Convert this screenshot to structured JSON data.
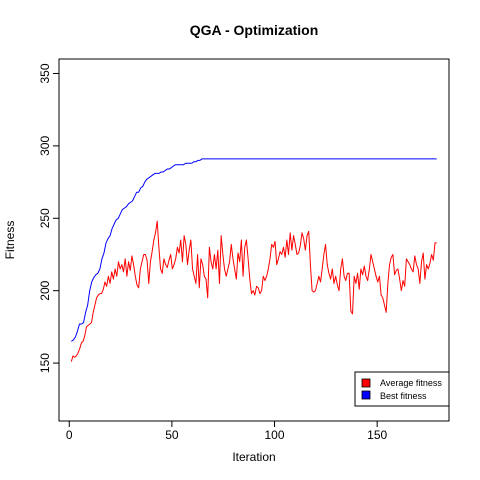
{
  "chart_data": {
    "type": "line",
    "title": "QGA - Optimization",
    "xlabel": "Iteration",
    "ylabel": "Fitness",
    "xlim": [
      -5,
      185
    ],
    "ylim": [
      110,
      360
    ],
    "x_ticks": [
      0,
      50,
      100,
      150
    ],
    "y_ticks": [
      150,
      200,
      250,
      300,
      350
    ],
    "grid": false,
    "legend_position": "bottom-right",
    "series": [
      {
        "name": "Average fitness",
        "color": "#ff0000",
        "values": [
          151,
          155,
          154,
          155,
          157,
          160,
          164,
          165,
          169,
          175,
          176,
          177,
          178,
          185,
          190,
          195,
          197,
          198,
          198,
          201,
          206,
          203,
          210,
          205,
          213,
          208,
          215,
          210,
          220,
          215,
          218,
          213,
          222,
          210,
          220,
          214,
          224,
          218,
          210,
          204,
          202,
          215,
          220,
          225,
          225,
          221,
          205,
          220,
          227,
          235,
          240,
          248,
          230,
          215,
          212,
          222,
          218,
          216,
          221,
          225,
          215,
          218,
          222,
          230,
          226,
          235,
          220,
          238,
          232,
          218,
          228,
          235,
          215,
          210,
          205,
          225,
          202,
          222,
          218,
          210,
          208,
          195,
          230,
          220,
          215,
          225,
          215,
          228,
          205,
          238,
          225,
          215,
          210,
          215,
          220,
          232,
          222,
          215,
          208,
          226,
          220,
          235,
          210,
          230,
          235,
          222,
          208,
          198,
          200,
          197,
          203,
          202,
          198,
          200,
          210,
          207,
          210,
          215,
          222,
          232,
          230,
          234,
          218,
          222,
          227,
          225,
          230,
          223,
          235,
          225,
          240,
          228,
          238,
          232,
          225,
          226,
          231,
          240,
          236,
          228,
          238,
          241,
          218,
          200,
          199,
          200,
          205,
          210,
          206,
          215,
          225,
          232,
          218,
          212,
          208,
          215,
          205,
          210,
          204,
          200,
          215,
          222,
          210,
          207,
          212,
          212,
          186,
          184,
          210,
          205,
          212,
          201,
          215,
          211,
          217,
          210,
          207,
          215,
          225,
          220,
          215,
          210,
          206,
          210,
          197,
          195,
          190,
          185,
          205,
          218,
          223,
          225,
          211,
          214,
          215,
          208,
          200,
          207,
          203,
          222,
          220,
          218,
          215,
          213,
          224,
          218,
          215,
          205,
          220,
          226,
          208,
          218,
          215,
          219,
          225,
          221,
          233,
          233
        ]
      },
      {
        "name": "Best fitness",
        "color": "#0000ff",
        "values": [
          165,
          166,
          168,
          172,
          177,
          177,
          178,
          185,
          190,
          200,
          206,
          209,
          211,
          212,
          215,
          222,
          226,
          233,
          236,
          238,
          243,
          246,
          249,
          250,
          253,
          256,
          257,
          258,
          260,
          261,
          262,
          265,
          268,
          268,
          271,
          272,
          275,
          277,
          278,
          279,
          280,
          281,
          281,
          281,
          282,
          282,
          283,
          284,
          284,
          285,
          286,
          287,
          287,
          287,
          287,
          287,
          288,
          288,
          288,
          288,
          289,
          289,
          290,
          290,
          291,
          291,
          291,
          291,
          291,
          291,
          291,
          291,
          291,
          291,
          291,
          291,
          291,
          291,
          291,
          291,
          291,
          291,
          291,
          291,
          291,
          291,
          291,
          291,
          291,
          291,
          291,
          291,
          291,
          291,
          291,
          291,
          291,
          291,
          291,
          291,
          291,
          291,
          291,
          291,
          291,
          291,
          291,
          291,
          291,
          291,
          291,
          291,
          291,
          291,
          291,
          291,
          291,
          291,
          291,
          291,
          291,
          291,
          291,
          291,
          291,
          291,
          291,
          291,
          291,
          291,
          291,
          291,
          291,
          291,
          291,
          291,
          291,
          291,
          291,
          291,
          291,
          291,
          291,
          291,
          291,
          291,
          291,
          291,
          291,
          291,
          291,
          291,
          291,
          291,
          291,
          291,
          291,
          291,
          291,
          291,
          291,
          291,
          291,
          291,
          291,
          291,
          291,
          291,
          291,
          291,
          291,
          291,
          291,
          291,
          291,
          291,
          291,
          291,
          291,
          291
        ]
      }
    ]
  }
}
